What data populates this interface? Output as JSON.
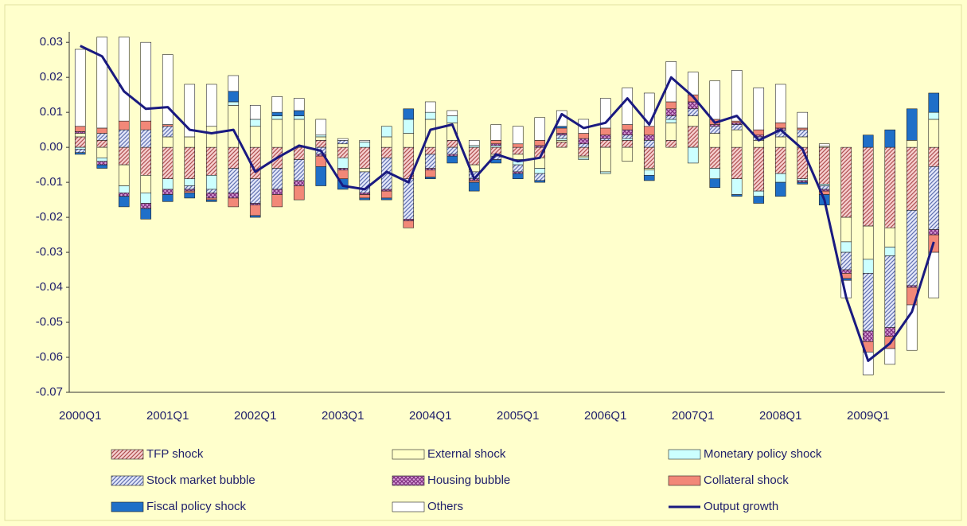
{
  "chart_data": {
    "type": "bar",
    "stacked": true,
    "categories": [
      "2000Q1",
      null,
      null,
      null,
      "2001Q1",
      null,
      null,
      null,
      "2002Q1",
      null,
      null,
      null,
      "2003Q1",
      null,
      null,
      null,
      "2004Q1",
      null,
      null,
      null,
      "2005Q1",
      null,
      null,
      null,
      "2006Q1",
      null,
      null,
      null,
      "2007Q1",
      null,
      null,
      null,
      "2008Q1",
      null,
      null,
      null,
      "2009Q1",
      null,
      null,
      null
    ],
    "ylim": [
      -0.07,
      0.033
    ],
    "yticks": [
      0.03,
      0.02,
      0.01,
      {
        "value": 0,
        "label": "0.00"
      },
      -0.01,
      -0.02,
      -0.03,
      -0.04,
      -0.05,
      -0.06,
      -0.07
    ],
    "legend": "bottom",
    "series": [
      {
        "name": "TFP shock",
        "color": "#f6d0d0",
        "pattern": "diagonal",
        "pattern_color": "#b05050",
        "values": [
          0.003,
          0.002,
          -0.005,
          -0.008,
          -0.009,
          -0.009,
          -0.008,
          -0.006,
          -0.009,
          -0.006,
          -0.0035,
          0.002,
          -0.003,
          -0.006,
          -0.003,
          -0.009,
          -0.002,
          0.002,
          -0.005,
          -0.002,
          -0.002,
          -0.003,
          0.0015,
          -0.0025,
          0.002,
          0.002,
          -0.006,
          0.002,
          0.006,
          -0.006,
          -0.009,
          -0.0125,
          -0.0075,
          -0.009,
          -0.0105,
          -0.02,
          -0.0225,
          -0.023,
          -0.018,
          -0.0055
        ]
      },
      {
        "name": "External shock",
        "color": "#ffffc8",
        "values": [
          0.001,
          -0.003,
          -0.006,
          -0.005,
          0.003,
          0.003,
          0.006,
          0.012,
          0.006,
          0.008,
          0.008,
          0.001,
          0.001,
          -0.001,
          0.003,
          0.004,
          0.008,
          0.005,
          -0.002,
          -0.0005,
          -0.0015,
          -0.003,
          0.0005,
          -0.0005,
          -0.007,
          -0.004,
          -0.0005,
          0.005,
          0.003,
          0.004,
          0.005,
          0.002,
          0.003,
          0.003,
          0.0003,
          -0.007,
          -0.0095,
          -0.0055,
          0.002,
          0.008
        ]
      },
      {
        "name": "Monetary policy shock",
        "color": "#ccffff",
        "values": [
          -0.0005,
          -0.001,
          -0.002,
          -0.003,
          -0.003,
          -0.002,
          -0.004,
          0.001,
          0.002,
          0.001,
          0.001,
          0.0005,
          -0.003,
          0.0015,
          0.003,
          0.004,
          0.002,
          0.002,
          0.0005,
          0.0005,
          -0.0015,
          -0.0015,
          0.0005,
          -0.0005,
          -0.0005,
          0.0005,
          -0.0015,
          0.001,
          -0.0045,
          -0.003,
          -0.0045,
          -0.0015,
          -0.0025,
          -0.0005,
          -0.0005,
          -0.003,
          -0.004,
          -0.0025,
          0,
          0.002
        ]
      },
      {
        "name": "Stock market bubble",
        "color": "#e4e8fa",
        "pattern": "diagonal",
        "pattern_color": "#6070b0",
        "values": [
          -0.001,
          0.002,
          0.005,
          0.005,
          0.003,
          -0.001,
          -0.001,
          -0.007,
          -0.007,
          -0.006,
          -0.006,
          -0.002,
          0.001,
          -0.006,
          -0.009,
          -0.0115,
          -0.004,
          -0.002,
          -0.002,
          -0.001,
          -0.002,
          -0.002,
          0.001,
          0.001,
          0.0005,
          0.001,
          0.002,
          0.001,
          0.002,
          0.002,
          0.0015,
          0.001,
          0.002,
          0.002,
          -0.001,
          -0.005,
          -0.0165,
          -0.0205,
          -0.0215,
          -0.018
        ]
      },
      {
        "name": "Housing bubble",
        "color": "#d8a0d8",
        "pattern": "crosshatch",
        "pattern_color": "#803080",
        "values": [
          0.0005,
          -0.001,
          -0.001,
          -0.0015,
          -0.0015,
          -0.0005,
          -0.0015,
          -0.0015,
          -0.0005,
          -0.0015,
          -0.0015,
          -0.0005,
          -0.0005,
          -0.0005,
          -0.0005,
          -0.0005,
          -0.0005,
          -0.0005,
          -0.0005,
          0.0005,
          -0.0005,
          0.0005,
          0.0005,
          0.0015,
          0.001,
          0.0015,
          0.0015,
          0.002,
          0.002,
          0.0005,
          0.0005,
          0.0005,
          0.0005,
          -0.0005,
          -0.0005,
          -0.001,
          -0.003,
          -0.0025,
          -0.0005,
          -0.0015
        ]
      },
      {
        "name": "Collateral shock",
        "color": "#f28878",
        "values": [
          0.0015,
          0.0015,
          0.0025,
          0.0025,
          0.0005,
          -0.0005,
          -0.0005,
          -0.0025,
          -0.003,
          -0.0035,
          -0.004,
          -0.003,
          -0.0025,
          -0.001,
          -0.002,
          -0.002,
          -0.002,
          0,
          -0.0005,
          0.001,
          0.001,
          0.0015,
          0.0015,
          0.0015,
          0.002,
          0.0015,
          0.0025,
          0.002,
          0.002,
          0.0015,
          0.0005,
          0.0015,
          0.0015,
          0.0005,
          -0.001,
          -0.0015,
          -0.003,
          -0.0035,
          -0.005,
          -0.005
        ]
      },
      {
        "name": "Fiscal policy shock",
        "color": "#1f6fc8",
        "values": [
          -0.0005,
          -0.001,
          -0.003,
          -0.003,
          -0.002,
          -0.0015,
          -0.0005,
          0.003,
          -0.0005,
          0.001,
          0.0015,
          -0.0055,
          -0.003,
          -0.0005,
          -0.0005,
          0.003,
          -0.0005,
          -0.002,
          -0.0025,
          -0.001,
          -0.0015,
          -0.0005,
          0.0005,
          0,
          0,
          0,
          -0.0015,
          0,
          0,
          -0.0025,
          -0.0005,
          -0.002,
          -0.004,
          -0.0005,
          -0.003,
          -0.0005,
          0.0035,
          0.005,
          0.009,
          0.0055
        ]
      },
      {
        "name": "Others",
        "color": "#ffffff",
        "values": [
          0.022,
          0.026,
          0.024,
          0.0225,
          0.02,
          0.015,
          0.012,
          0.0045,
          0.004,
          0.0045,
          0.0035,
          0.0045,
          0.0005,
          0.0005,
          0,
          0,
          0.003,
          0.0015,
          0.0015,
          0.0045,
          0.005,
          0.0065,
          0.0045,
          0.004,
          0.0085,
          0.0105,
          0.0095,
          0.0115,
          0.0065,
          0.011,
          0.0145,
          0.012,
          0.011,
          0.0045,
          0.0007,
          -0.005,
          -0.0065,
          -0.0045,
          -0.013,
          -0.013
        ]
      },
      {
        "name": "Output growth",
        "type": "line",
        "color": "#1a1a80",
        "values": [
          0.029,
          0.026,
          0.016,
          0.011,
          0.0115,
          0.005,
          0.004,
          0.005,
          -0.007,
          -0.003,
          0.0005,
          -0.001,
          -0.011,
          -0.012,
          -0.007,
          -0.01,
          0.005,
          0.0065,
          -0.009,
          -0.002,
          -0.004,
          -0.003,
          0.0095,
          0.0055,
          0.007,
          0.014,
          0.0065,
          0.02,
          0.0145,
          0.007,
          0.009,
          0.002,
          0.005,
          -0.0005,
          -0.015,
          -0.043,
          -0.061,
          -0.056,
          -0.047,
          -0.027
        ]
      }
    ]
  }
}
